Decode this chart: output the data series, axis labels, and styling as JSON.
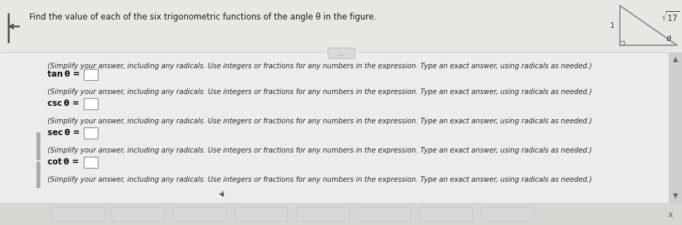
{
  "title": "Find the value of each of the six trigonometric functions of the angle θ in the figure.",
  "bg_color": "#f0f0f0",
  "top_area_color": "#e8e6e4",
  "content_area_color": "#edecea",
  "simplify_text": "(Simplify your answer, including any radicals. Use integers or fractions for any numbers in the expression. Type an exact answer, using radicals as needed.)",
  "rows": [
    {
      "label": "tan θ ="
    },
    {
      "label": "csc θ ="
    },
    {
      "label": "sec θ ="
    },
    {
      "label": "cot θ ="
    }
  ],
  "font_size_title": 8.5,
  "font_size_body": 7.2,
  "font_size_label": 8.5,
  "left_bar_color": "#aaaaaa",
  "scrollbar_color": "#c0c0c0",
  "bottom_btn_color": "#d8d8d8",
  "bottom_btn_edge": "#c0c0c0",
  "tri_color": "#888888",
  "input_box_color": "white",
  "input_box_edge": "#888888"
}
